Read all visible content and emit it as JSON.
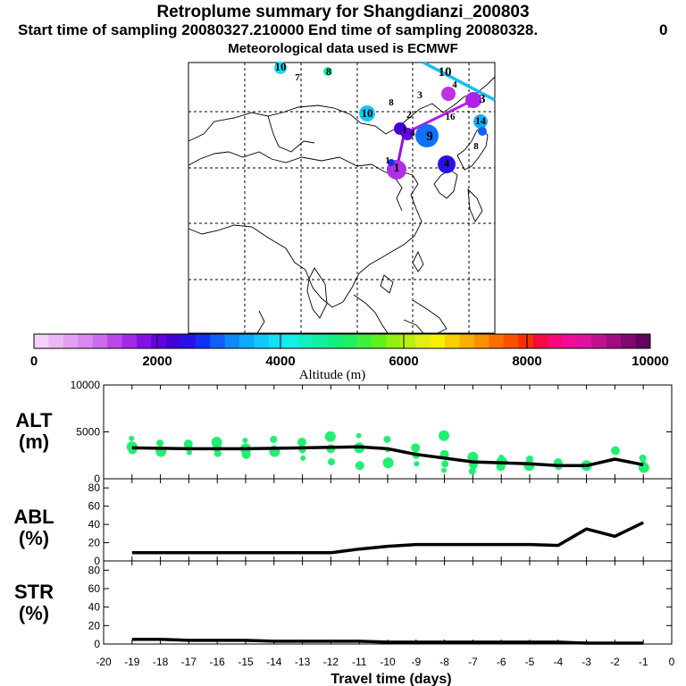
{
  "header": {
    "title": "Retroplume summary for Shangdianzi_200803",
    "sampling": "Start time of sampling 20080327.210000     End time of sampling 20080328.",
    "sampling_end_tail": "0",
    "met": "Meteorological data used is ECMWF"
  },
  "map": {
    "labels": [
      {
        "text": "10",
        "color": "#00ddf0"
      },
      {
        "text": "7",
        "color": "#00ddf0"
      },
      {
        "text": "8",
        "color": "#00e890"
      },
      {
        "text": "10",
        "color": "#00d8f0"
      },
      {
        "text": "8",
        "color": "#2020e0"
      },
      {
        "text": "3",
        "color": "#c020e0"
      },
      {
        "text": "3",
        "color": "#c020e0"
      },
      {
        "text": "2",
        "color": "#2060f0"
      },
      {
        "text": "16",
        "color": "#00ccf0"
      },
      {
        "text": "14",
        "color": "#00c8f0"
      },
      {
        "text": "4",
        "color": "#2060f0"
      },
      {
        "text": "1",
        "color": "#1060f0"
      },
      {
        "text": "9",
        "color": "#1060f0"
      },
      {
        "text": "4",
        "color": "#6010e0"
      },
      {
        "text": "1",
        "color": "#c020e0"
      },
      {
        "text": "4",
        "color": "#2020e0"
      },
      {
        "text": "1",
        "color": "#2020e0"
      },
      {
        "text": "8",
        "color": "#1060f0"
      }
    ]
  },
  "colorbar": {
    "ticks": [
      "0",
      "2000",
      "4000",
      "6000",
      "8000",
      "10000"
    ],
    "label": "Altitude (m)",
    "colors": [
      "#f4d2f8",
      "#ecb8f4",
      "#e2a0f0",
      "#d888ee",
      "#cc6cec",
      "#be46e8",
      "#a22ae6",
      "#8610e4",
      "#6400de",
      "#4200d8",
      "#2a10e8",
      "#1030f4",
      "#1060f8",
      "#1088fa",
      "#10a8fa",
      "#10c8fa",
      "#10e0f8",
      "#10f0e8",
      "#10f0c0",
      "#10f0a0",
      "#10f080",
      "#20f060",
      "#40f040",
      "#60f020",
      "#90f010",
      "#b8f010",
      "#e0f010",
      "#f8f000",
      "#f8d000",
      "#f8b000",
      "#f89000",
      "#f87000",
      "#f85000",
      "#f83000",
      "#f80a40",
      "#f8087a",
      "#f00c96",
      "#e010a0",
      "#c01090",
      "#a00c80",
      "#800870",
      "#600460"
    ]
  },
  "panels": {
    "alt": {
      "label1": "ALT",
      "label2": "(m)"
    },
    "abl": {
      "label1": "ABL",
      "label2": "(%)"
    },
    "str": {
      "label1": "STR",
      "label2": "(%)"
    }
  },
  "chart_data": [
    {
      "type": "line",
      "title": "ALT",
      "ylabel": "(m)",
      "xlabel": "Travel time (days)",
      "xlim": [
        -20,
        0
      ],
      "ylim": [
        0,
        10000
      ],
      "yticks": [
        "10000",
        "5000",
        "0"
      ],
      "xticks": [
        "-20",
        "-19",
        "-18",
        "-17",
        "-16",
        "-15",
        "-14",
        "-13",
        "-12",
        "-11",
        "-10",
        "-9",
        "-8",
        "-7",
        "-6",
        "-5",
        "-4",
        "-3",
        "-2",
        "-1",
        "0"
      ],
      "series": [
        {
          "name": "mean altitude",
          "x": [
            -19,
            -18,
            -17,
            -16,
            -15,
            -14,
            -13,
            -12,
            -11,
            -10,
            -9,
            -8,
            -7,
            -6,
            -5,
            -4,
            -3,
            -2,
            -1
          ],
          "values": [
            3300,
            3250,
            3200,
            3200,
            3200,
            3250,
            3300,
            3350,
            3400,
            3200,
            2600,
            2200,
            1800,
            1700,
            1600,
            1400,
            1400,
            2100,
            1500
          ]
        },
        {
          "name": "plume altitudes",
          "type": "scatter",
          "x": [
            -19,
            -19,
            -19,
            -18,
            -18,
            -18,
            -17,
            -17,
            -17,
            -16,
            -16,
            -16,
            -15,
            -15,
            -15,
            -14,
            -14,
            -14,
            -13,
            -13,
            -13,
            -12,
            -12,
            -12,
            -11,
            -11,
            -11,
            -10,
            -10,
            -10,
            -9,
            -9,
            -9,
            -8,
            -8,
            -8,
            -8,
            -7,
            -7,
            -7,
            -6,
            -6,
            -6,
            -5,
            -5,
            -5,
            -4,
            -4,
            -3,
            -3,
            -2,
            -1,
            -1,
            -1
          ],
          "values": [
            4300,
            3400,
            3100,
            3800,
            3200,
            2900,
            3700,
            3300,
            2800,
            3900,
            3300,
            2700,
            4100,
            3200,
            2600,
            4200,
            3300,
            2900,
            3900,
            3100,
            2200,
            4500,
            3200,
            1800,
            4600,
            3300,
            1400,
            4200,
            3100,
            1700,
            3300,
            2500,
            1600,
            4600,
            2600,
            1600,
            900,
            2300,
            1500,
            800,
            2300,
            1800,
            1300,
            2100,
            1700,
            1400,
            1700,
            1300,
            1600,
            1400,
            3000,
            2200,
            1700,
            1200
          ]
        }
      ]
    },
    {
      "type": "line",
      "title": "ABL",
      "ylabel": "(%)",
      "xlim": [
        -20,
        0
      ],
      "ylim": [
        0,
        90
      ],
      "yticks": [
        "80",
        "60",
        "40",
        "20",
        "0"
      ],
      "series": [
        {
          "name": "ABL fraction",
          "x": [
            -19,
            -18,
            -17,
            -16,
            -15,
            -14,
            -13,
            -12,
            -11,
            -10,
            -9,
            -8,
            -7,
            -6,
            -5,
            -4,
            -3,
            -2,
            -1
          ],
          "values": [
            9,
            9,
            9,
            9,
            9,
            9,
            9,
            9,
            13,
            16,
            18,
            18,
            18,
            18,
            18,
            17,
            35,
            27,
            42
          ]
        }
      ]
    },
    {
      "type": "line",
      "title": "STR",
      "ylabel": "(%)",
      "xlim": [
        -20,
        0
      ],
      "ylim": [
        0,
        90
      ],
      "yticks": [
        "80",
        "60",
        "40",
        "20",
        "0"
      ],
      "series": [
        {
          "name": "STR fraction",
          "x": [
            -19,
            -18,
            -17,
            -16,
            -15,
            -14,
            -13,
            -12,
            -11,
            -10,
            -9,
            -8,
            -7,
            -6,
            -5,
            -4,
            -3,
            -2,
            -1
          ],
          "values": [
            5,
            5,
            4,
            4,
            4,
            3,
            3,
            3,
            3,
            2,
            2,
            2,
            2,
            2,
            2,
            2,
            1,
            1,
            1
          ]
        }
      ]
    }
  ]
}
